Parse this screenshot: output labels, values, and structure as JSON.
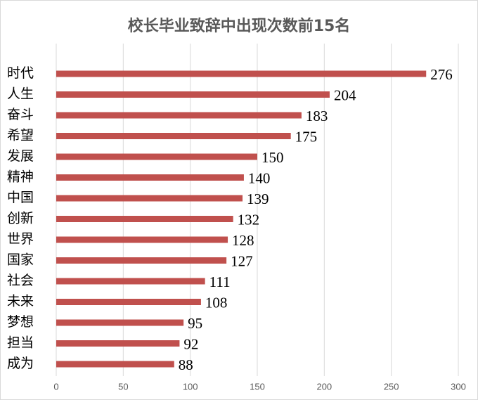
{
  "chart_data": {
    "type": "bar",
    "orientation": "horizontal",
    "title": "校长毕业致辞中出现次数前15名",
    "categories": [
      "时代",
      "人生",
      "奋斗",
      "希望",
      "发展",
      "精神",
      "中国",
      "创新",
      "世界",
      "国家",
      "社会",
      "未来",
      "梦想",
      "担当",
      "成为"
    ],
    "values": [
      276,
      204,
      183,
      175,
      150,
      140,
      139,
      132,
      128,
      127,
      111,
      108,
      95,
      92,
      88
    ],
    "color": "#c0504d",
    "xlim": [
      0,
      300
    ],
    "xticks": [
      0,
      50,
      100,
      150,
      200,
      250,
      300
    ],
    "grid": true
  }
}
